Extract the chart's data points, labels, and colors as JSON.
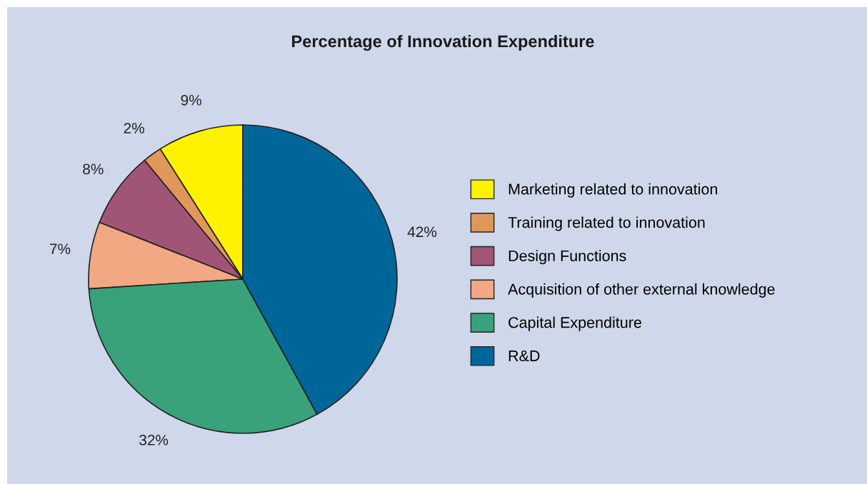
{
  "chart_data": {
    "type": "pie",
    "title": "Percentage of Innovation Expenditure",
    "categories": [
      "Marketing related to innovation",
      "Training related to innovation",
      "Design Functions",
      "Acquisition of other external knowledge",
      "Capital Expenditure",
      "R&D"
    ],
    "values": [
      9,
      2,
      8,
      7,
      32,
      42
    ],
    "value_labels": [
      "9%",
      "2%",
      "8%",
      "7%",
      "32%",
      "42%"
    ],
    "colors": [
      "#fff200",
      "#e0975a",
      "#a05577",
      "#f2a882",
      "#3aa27a",
      "#006699"
    ],
    "legend": "right"
  }
}
